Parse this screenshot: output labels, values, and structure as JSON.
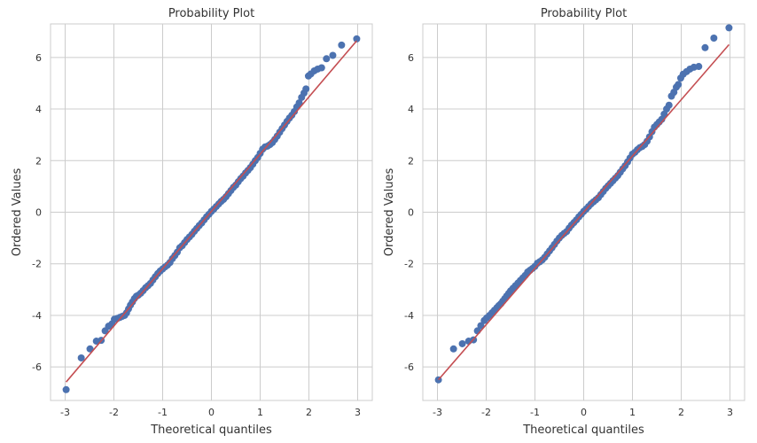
{
  "chart_data": [
    {
      "type": "scatter",
      "title": "Probability Plot",
      "xlabel": "Theoretical quantiles",
      "ylabel": "Ordered Values",
      "xlim": [
        -3.3,
        3.3
      ],
      "ylim": [
        -7.3,
        7.3
      ],
      "xticks": [
        -3,
        -2,
        -1,
        0,
        1,
        2,
        3
      ],
      "yticks": [
        -6,
        -4,
        -2,
        0,
        2,
        4,
        6
      ],
      "grid": true,
      "fit_line": {
        "slope": 2.22,
        "intercept": 0.03,
        "x": [
          -2.98,
          2.98
        ],
        "color": "#c44e52"
      },
      "marker_color": "#4c72b0",
      "points": [
        [
          -2.98,
          -6.88
        ],
        [
          -2.67,
          -5.65
        ],
        [
          -2.49,
          -5.3
        ],
        [
          -2.36,
          -5.0
        ],
        [
          -2.26,
          -4.97
        ],
        [
          -2.18,
          -4.6
        ],
        [
          -2.11,
          -4.42
        ],
        [
          -2.04,
          -4.33
        ],
        [
          -1.99,
          -4.15
        ],
        [
          -1.93,
          -4.12
        ],
        [
          -1.88,
          -4.08
        ],
        [
          -1.83,
          -4.04
        ],
        [
          -1.78,
          -4.0
        ],
        [
          -1.74,
          -3.9
        ],
        [
          -1.7,
          -3.75
        ],
        [
          -1.66,
          -3.6
        ],
        [
          -1.62,
          -3.48
        ],
        [
          -1.58,
          -3.35
        ],
        [
          -1.54,
          -3.26
        ],
        [
          -1.5,
          -3.22
        ],
        [
          -1.45,
          -3.14
        ],
        [
          -1.4,
          -3.04
        ],
        [
          -1.35,
          -2.93
        ],
        [
          -1.3,
          -2.85
        ],
        [
          -1.25,
          -2.76
        ],
        [
          -1.2,
          -2.63
        ],
        [
          -1.15,
          -2.5
        ],
        [
          -1.1,
          -2.38
        ],
        [
          -1.05,
          -2.28
        ],
        [
          -1.0,
          -2.2
        ],
        [
          -0.95,
          -2.12
        ],
        [
          -0.9,
          -2.05
        ],
        [
          -0.85,
          -1.95
        ],
        [
          -0.8,
          -1.8
        ],
        [
          -0.75,
          -1.68
        ],
        [
          -0.7,
          -1.55
        ],
        [
          -0.65,
          -1.38
        ],
        [
          -0.6,
          -1.3
        ],
        [
          -0.55,
          -1.18
        ],
        [
          -0.5,
          -1.06
        ],
        [
          -0.45,
          -0.96
        ],
        [
          -0.4,
          -0.86
        ],
        [
          -0.35,
          -0.74
        ],
        [
          -0.3,
          -0.63
        ],
        [
          -0.25,
          -0.52
        ],
        [
          -0.2,
          -0.42
        ],
        [
          -0.15,
          -0.3
        ],
        [
          -0.1,
          -0.18
        ],
        [
          -0.05,
          -0.08
        ],
        [
          0.0,
          0.03
        ],
        [
          0.05,
          0.12
        ],
        [
          0.1,
          0.22
        ],
        [
          0.15,
          0.32
        ],
        [
          0.2,
          0.42
        ],
        [
          0.25,
          0.5
        ],
        [
          0.3,
          0.6
        ],
        [
          0.35,
          0.72
        ],
        [
          0.4,
          0.84
        ],
        [
          0.45,
          0.96
        ],
        [
          0.5,
          1.05
        ],
        [
          0.55,
          1.18
        ],
        [
          0.6,
          1.3
        ],
        [
          0.65,
          1.4
        ],
        [
          0.7,
          1.52
        ],
        [
          0.75,
          1.62
        ],
        [
          0.8,
          1.73
        ],
        [
          0.85,
          1.86
        ],
        [
          0.9,
          2.0
        ],
        [
          0.95,
          2.12
        ],
        [
          1.0,
          2.28
        ],
        [
          1.05,
          2.44
        ],
        [
          1.1,
          2.53
        ],
        [
          1.15,
          2.56
        ],
        [
          1.2,
          2.62
        ],
        [
          1.25,
          2.7
        ],
        [
          1.3,
          2.82
        ],
        [
          1.35,
          2.95
        ],
        [
          1.4,
          3.1
        ],
        [
          1.45,
          3.24
        ],
        [
          1.5,
          3.38
        ],
        [
          1.55,
          3.52
        ],
        [
          1.6,
          3.65
        ],
        [
          1.65,
          3.76
        ],
        [
          1.7,
          3.9
        ],
        [
          1.75,
          4.08
        ],
        [
          1.8,
          4.24
        ],
        [
          1.85,
          4.45
        ],
        [
          1.9,
          4.62
        ],
        [
          1.94,
          4.78
        ],
        [
          1.99,
          5.28
        ],
        [
          2.04,
          5.36
        ],
        [
          2.11,
          5.48
        ],
        [
          2.18,
          5.55
        ],
        [
          2.26,
          5.6
        ],
        [
          2.36,
          5.95
        ],
        [
          2.49,
          6.08
        ],
        [
          2.67,
          6.48
        ],
        [
          2.98,
          6.72
        ]
      ]
    },
    {
      "type": "scatter",
      "title": "Probability Plot",
      "xlabel": "Theoretical quantiles",
      "ylabel": "Ordered Values",
      "xlim": [
        -3.3,
        3.3
      ],
      "ylim": [
        -7.3,
        7.3
      ],
      "xticks": [
        -3,
        -2,
        -1,
        0,
        1,
        2,
        3
      ],
      "yticks": [
        -6,
        -4,
        -2,
        0,
        2,
        4,
        6
      ],
      "grid": true,
      "fit_line": {
        "slope": 2.18,
        "intercept": 0.0,
        "x": [
          -2.98,
          2.98
        ],
        "color": "#c44e52"
      },
      "marker_color": "#4c72b0",
      "points": [
        [
          -2.98,
          -6.5
        ],
        [
          -2.67,
          -5.3
        ],
        [
          -2.49,
          -5.1
        ],
        [
          -2.36,
          -5.0
        ],
        [
          -2.26,
          -4.95
        ],
        [
          -2.18,
          -4.6
        ],
        [
          -2.11,
          -4.4
        ],
        [
          -2.04,
          -4.2
        ],
        [
          -1.99,
          -4.1
        ],
        [
          -1.93,
          -4.0
        ],
        [
          -1.88,
          -3.9
        ],
        [
          -1.83,
          -3.8
        ],
        [
          -1.78,
          -3.7
        ],
        [
          -1.74,
          -3.62
        ],
        [
          -1.7,
          -3.55
        ],
        [
          -1.66,
          -3.45
        ],
        [
          -1.62,
          -3.35
        ],
        [
          -1.58,
          -3.25
        ],
        [
          -1.54,
          -3.15
        ],
        [
          -1.5,
          -3.05
        ],
        [
          -1.45,
          -2.95
        ],
        [
          -1.4,
          -2.85
        ],
        [
          -1.35,
          -2.75
        ],
        [
          -1.3,
          -2.65
        ],
        [
          -1.25,
          -2.55
        ],
        [
          -1.2,
          -2.45
        ],
        [
          -1.15,
          -2.32
        ],
        [
          -1.1,
          -2.25
        ],
        [
          -1.05,
          -2.18
        ],
        [
          -1.0,
          -2.1
        ],
        [
          -0.95,
          -1.98
        ],
        [
          -0.9,
          -1.92
        ],
        [
          -0.85,
          -1.85
        ],
        [
          -0.8,
          -1.75
        ],
        [
          -0.75,
          -1.62
        ],
        [
          -0.7,
          -1.5
        ],
        [
          -0.65,
          -1.38
        ],
        [
          -0.6,
          -1.25
        ],
        [
          -0.55,
          -1.12
        ],
        [
          -0.5,
          -1.0
        ],
        [
          -0.45,
          -0.9
        ],
        [
          -0.4,
          -0.82
        ],
        [
          -0.35,
          -0.75
        ],
        [
          -0.3,
          -0.62
        ],
        [
          -0.25,
          -0.5
        ],
        [
          -0.2,
          -0.4
        ],
        [
          -0.15,
          -0.3
        ],
        [
          -0.1,
          -0.18
        ],
        [
          -0.05,
          -0.08
        ],
        [
          0.0,
          0.03
        ],
        [
          0.05,
          0.12
        ],
        [
          0.1,
          0.22
        ],
        [
          0.15,
          0.32
        ],
        [
          0.2,
          0.4
        ],
        [
          0.25,
          0.48
        ],
        [
          0.3,
          0.56
        ],
        [
          0.35,
          0.68
        ],
        [
          0.4,
          0.8
        ],
        [
          0.45,
          0.92
        ],
        [
          0.5,
          1.02
        ],
        [
          0.55,
          1.12
        ],
        [
          0.6,
          1.22
        ],
        [
          0.65,
          1.32
        ],
        [
          0.7,
          1.42
        ],
        [
          0.75,
          1.55
        ],
        [
          0.8,
          1.68
        ],
        [
          0.85,
          1.8
        ],
        [
          0.9,
          1.95
        ],
        [
          0.95,
          2.1
        ],
        [
          1.0,
          2.25
        ],
        [
          1.05,
          2.32
        ],
        [
          1.1,
          2.42
        ],
        [
          1.15,
          2.5
        ],
        [
          1.2,
          2.55
        ],
        [
          1.25,
          2.62
        ],
        [
          1.3,
          2.75
        ],
        [
          1.35,
          2.92
        ],
        [
          1.4,
          3.12
        ],
        [
          1.45,
          3.3
        ],
        [
          1.5,
          3.4
        ],
        [
          1.55,
          3.5
        ],
        [
          1.6,
          3.6
        ],
        [
          1.65,
          3.8
        ],
        [
          1.7,
          4.0
        ],
        [
          1.75,
          4.15
        ],
        [
          1.8,
          4.5
        ],
        [
          1.85,
          4.65
        ],
        [
          1.9,
          4.85
        ],
        [
          1.94,
          4.95
        ],
        [
          1.99,
          5.2
        ],
        [
          2.04,
          5.35
        ],
        [
          2.11,
          5.45
        ],
        [
          2.18,
          5.55
        ],
        [
          2.26,
          5.62
        ],
        [
          2.36,
          5.65
        ],
        [
          2.49,
          6.38
        ],
        [
          2.67,
          6.75
        ],
        [
          2.98,
          7.15
        ]
      ]
    }
  ]
}
